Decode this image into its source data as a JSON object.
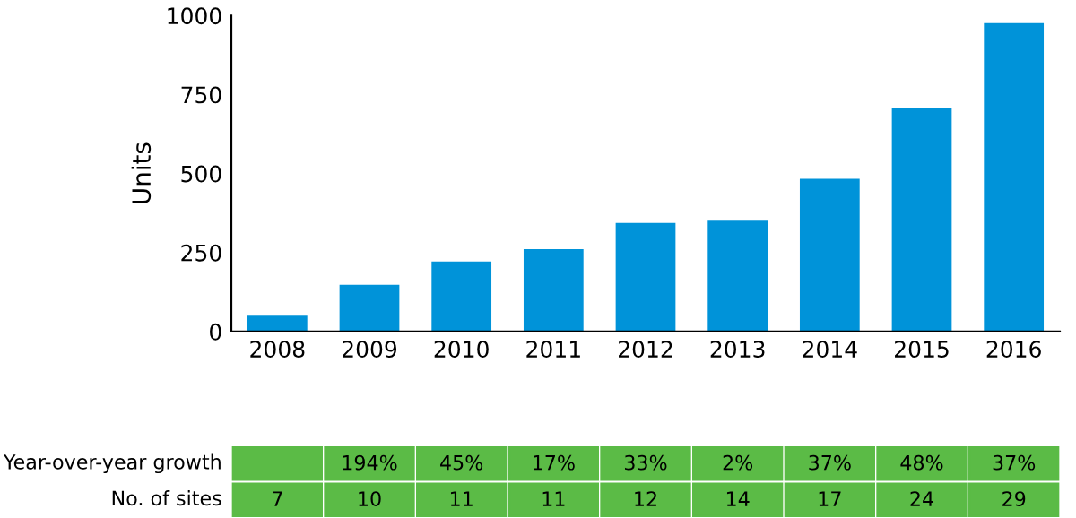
{
  "chart_data": [
    {
      "type": "bar",
      "ylabel": "Units",
      "categories": [
        "2008",
        "2009",
        "2010",
        "2011",
        "2012",
        "2013",
        "2014",
        "2015",
        "2016"
      ],
      "values": [
        50,
        148,
        222,
        261,
        344,
        351,
        483,
        709,
        976
      ],
      "color": "#0093d9",
      "ylim": [
        0,
        1000
      ],
      "yticks": [
        0,
        250,
        500,
        750,
        1000
      ],
      "grid": false
    },
    {
      "type": "other",
      "y_categories": [
        "Year-over-year growth",
        "No. of sites"
      ],
      "cell_labels": [
        [
          null,
          "194%",
          "45%",
          "17%",
          "33%",
          "2%",
          "37%",
          "48%",
          "37%"
        ],
        [
          "7",
          "10",
          "11",
          "11",
          "12",
          "14",
          "17",
          "24",
          "29"
        ]
      ],
      "color": "#5bbb46"
    }
  ]
}
